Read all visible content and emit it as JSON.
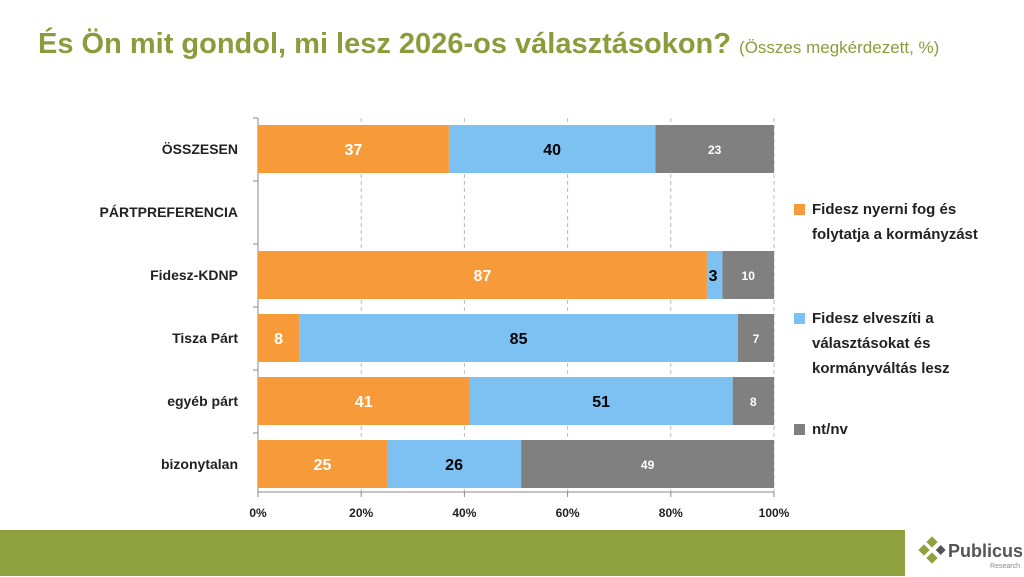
{
  "title": "És Ön mit gondol, mi lesz 2026-os választásokon?",
  "subtitle": "(Összes megkérdezett, %)",
  "logo": {
    "name": "Publicus",
    "sub": "Research"
  },
  "chart_data": {
    "type": "bar",
    "orientation": "horizontal",
    "stacked": true,
    "percent": true,
    "categories": [
      "ÖSSZESEN",
      "PÁRTPREFERENCIA",
      "Fidesz-KDNP",
      "Tisza Párt",
      "egyéb párt",
      "bizonytalan"
    ],
    "series": [
      {
        "name": "Fidesz nyerni fog és folytatja a kormányzást",
        "color": "#f79a3a",
        "values": [
          37,
          null,
          87,
          8,
          41,
          25
        ]
      },
      {
        "name": "Fidesz elveszíti a választásokat és kormányváltás lesz",
        "color": "#7dc1f2",
        "values": [
          40,
          null,
          3,
          85,
          51,
          26
        ]
      },
      {
        "name": "nt/nv",
        "color": "#808080",
        "values": [
          23,
          null,
          10,
          7,
          8,
          49
        ]
      }
    ],
    "xticks": [
      "0%",
      "20%",
      "40%",
      "60%",
      "80%",
      "100%"
    ],
    "xlim": [
      0,
      100
    ],
    "legend": "right"
  }
}
